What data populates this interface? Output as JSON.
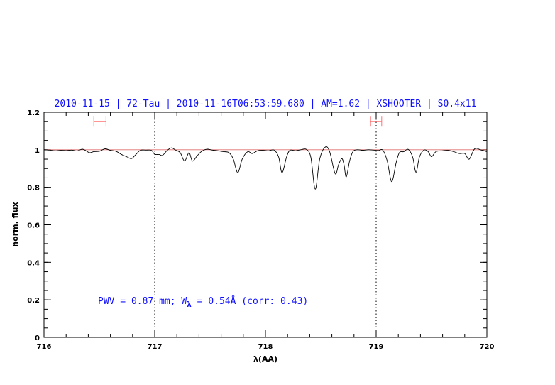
{
  "chart_data": {
    "type": "line",
    "title": "2010-11-15 | 72-Tau | 2010-11-16T06:53:59.680 | AM=1.62 | XSHOOTER | S0.4x11",
    "xlabel": "λ(AA)",
    "ylabel": "norm. flux",
    "xlim": [
      716,
      720
    ],
    "ylim": [
      0,
      1.2
    ],
    "x_ticks": [
      716,
      717,
      718,
      719,
      720
    ],
    "y_ticks": [
      0,
      0.2,
      0.4,
      0.6,
      0.8,
      1,
      1.2
    ],
    "x_minor_step": 0.2,
    "y_minor_step": 0.05,
    "grid": false,
    "vertical_dotted_lines": [
      717,
      719
    ],
    "reference_line": {
      "y": 1.0,
      "color": "#e07070"
    },
    "range_markers": [
      {
        "x_from": 716.45,
        "x_to": 716.56,
        "y": 1.15,
        "color": "#ff7070"
      },
      {
        "x_from": 718.95,
        "x_to": 719.05,
        "y": 1.15,
        "color": "#ff7070"
      }
    ],
    "annotation": {
      "text_main": "PWV = 0.87 mm; W",
      "subscript": "λ",
      "text_tail": " = 0.54Å (corr: 0.43)",
      "color": "#1010ff"
    },
    "series": [
      {
        "color": "#000000",
        "points": [
          [
            716.0,
            1.0
          ],
          [
            716.05,
            0.998
          ],
          [
            716.1,
            0.995
          ],
          [
            716.15,
            0.997
          ],
          [
            716.2,
            0.996
          ],
          [
            716.25,
            0.998
          ],
          [
            716.3,
            0.994
          ],
          [
            716.35,
            1.003
          ],
          [
            716.41,
            0.985
          ],
          [
            716.45,
            0.99
          ],
          [
            716.5,
            0.992
          ],
          [
            716.55,
            1.005
          ],
          [
            716.6,
            0.997
          ],
          [
            716.65,
            0.992
          ],
          [
            716.7,
            0.975
          ],
          [
            716.75,
            0.962
          ],
          [
            716.79,
            0.953
          ],
          [
            716.83,
            0.975
          ],
          [
            716.87,
            0.997
          ],
          [
            716.92,
            0.998
          ],
          [
            716.97,
            0.997
          ],
          [
            717.0,
            0.976
          ],
          [
            717.04,
            0.975
          ],
          [
            717.07,
            0.97
          ],
          [
            717.11,
            0.995
          ],
          [
            717.15,
            1.01
          ],
          [
            717.19,
            0.998
          ],
          [
            717.23,
            0.985
          ],
          [
            717.27,
            0.94
          ],
          [
            717.31,
            0.985
          ],
          [
            717.34,
            0.94
          ],
          [
            717.38,
            0.965
          ],
          [
            717.42,
            0.99
          ],
          [
            717.47,
            1.003
          ],
          [
            717.52,
            0.998
          ],
          [
            717.57,
            0.995
          ],
          [
            717.62,
            0.99
          ],
          [
            717.67,
            0.985
          ],
          [
            717.71,
            0.95
          ],
          [
            717.75,
            0.878
          ],
          [
            717.79,
            0.95
          ],
          [
            717.84,
            0.99
          ],
          [
            717.88,
            0.98
          ],
          [
            717.93,
            0.995
          ],
          [
            717.98,
            0.997
          ],
          [
            718.03,
            0.995
          ],
          [
            718.08,
            0.998
          ],
          [
            718.12,
            0.96
          ],
          [
            718.15,
            0.878
          ],
          [
            718.19,
            0.96
          ],
          [
            718.22,
            0.997
          ],
          [
            718.27,
            0.995
          ],
          [
            718.32,
            1.0
          ],
          [
            718.37,
            1.002
          ],
          [
            718.41,
            0.96
          ],
          [
            718.45,
            0.79
          ],
          [
            718.49,
            0.95
          ],
          [
            718.54,
            1.014
          ],
          [
            718.58,
            0.99
          ],
          [
            718.63,
            0.872
          ],
          [
            718.66,
            0.92
          ],
          [
            718.69,
            0.953
          ],
          [
            718.71,
            0.92
          ],
          [
            718.73,
            0.855
          ],
          [
            718.76,
            0.94
          ],
          [
            718.79,
            0.99
          ],
          [
            718.83,
            1.0
          ],
          [
            718.88,
            0.997
          ],
          [
            718.93,
            1.0
          ],
          [
            718.98,
            0.998
          ],
          [
            719.02,
            0.996
          ],
          [
            719.06,
            0.998
          ],
          [
            719.1,
            0.94
          ],
          [
            719.14,
            0.83
          ],
          [
            719.18,
            0.93
          ],
          [
            719.21,
            0.985
          ],
          [
            719.25,
            0.99
          ],
          [
            719.29,
            1.002
          ],
          [
            719.33,
            0.96
          ],
          [
            719.36,
            0.88
          ],
          [
            719.39,
            0.96
          ],
          [
            719.43,
            0.998
          ],
          [
            719.47,
            0.99
          ],
          [
            719.5,
            0.963
          ],
          [
            719.54,
            0.99
          ],
          [
            719.6,
            0.995
          ],
          [
            719.65,
            0.997
          ],
          [
            719.7,
            0.99
          ],
          [
            719.75,
            0.98
          ],
          [
            719.8,
            0.98
          ],
          [
            719.84,
            0.95
          ],
          [
            719.89,
            1.005
          ],
          [
            719.95,
            0.998
          ],
          [
            720.0,
            0.99
          ]
        ]
      }
    ]
  }
}
